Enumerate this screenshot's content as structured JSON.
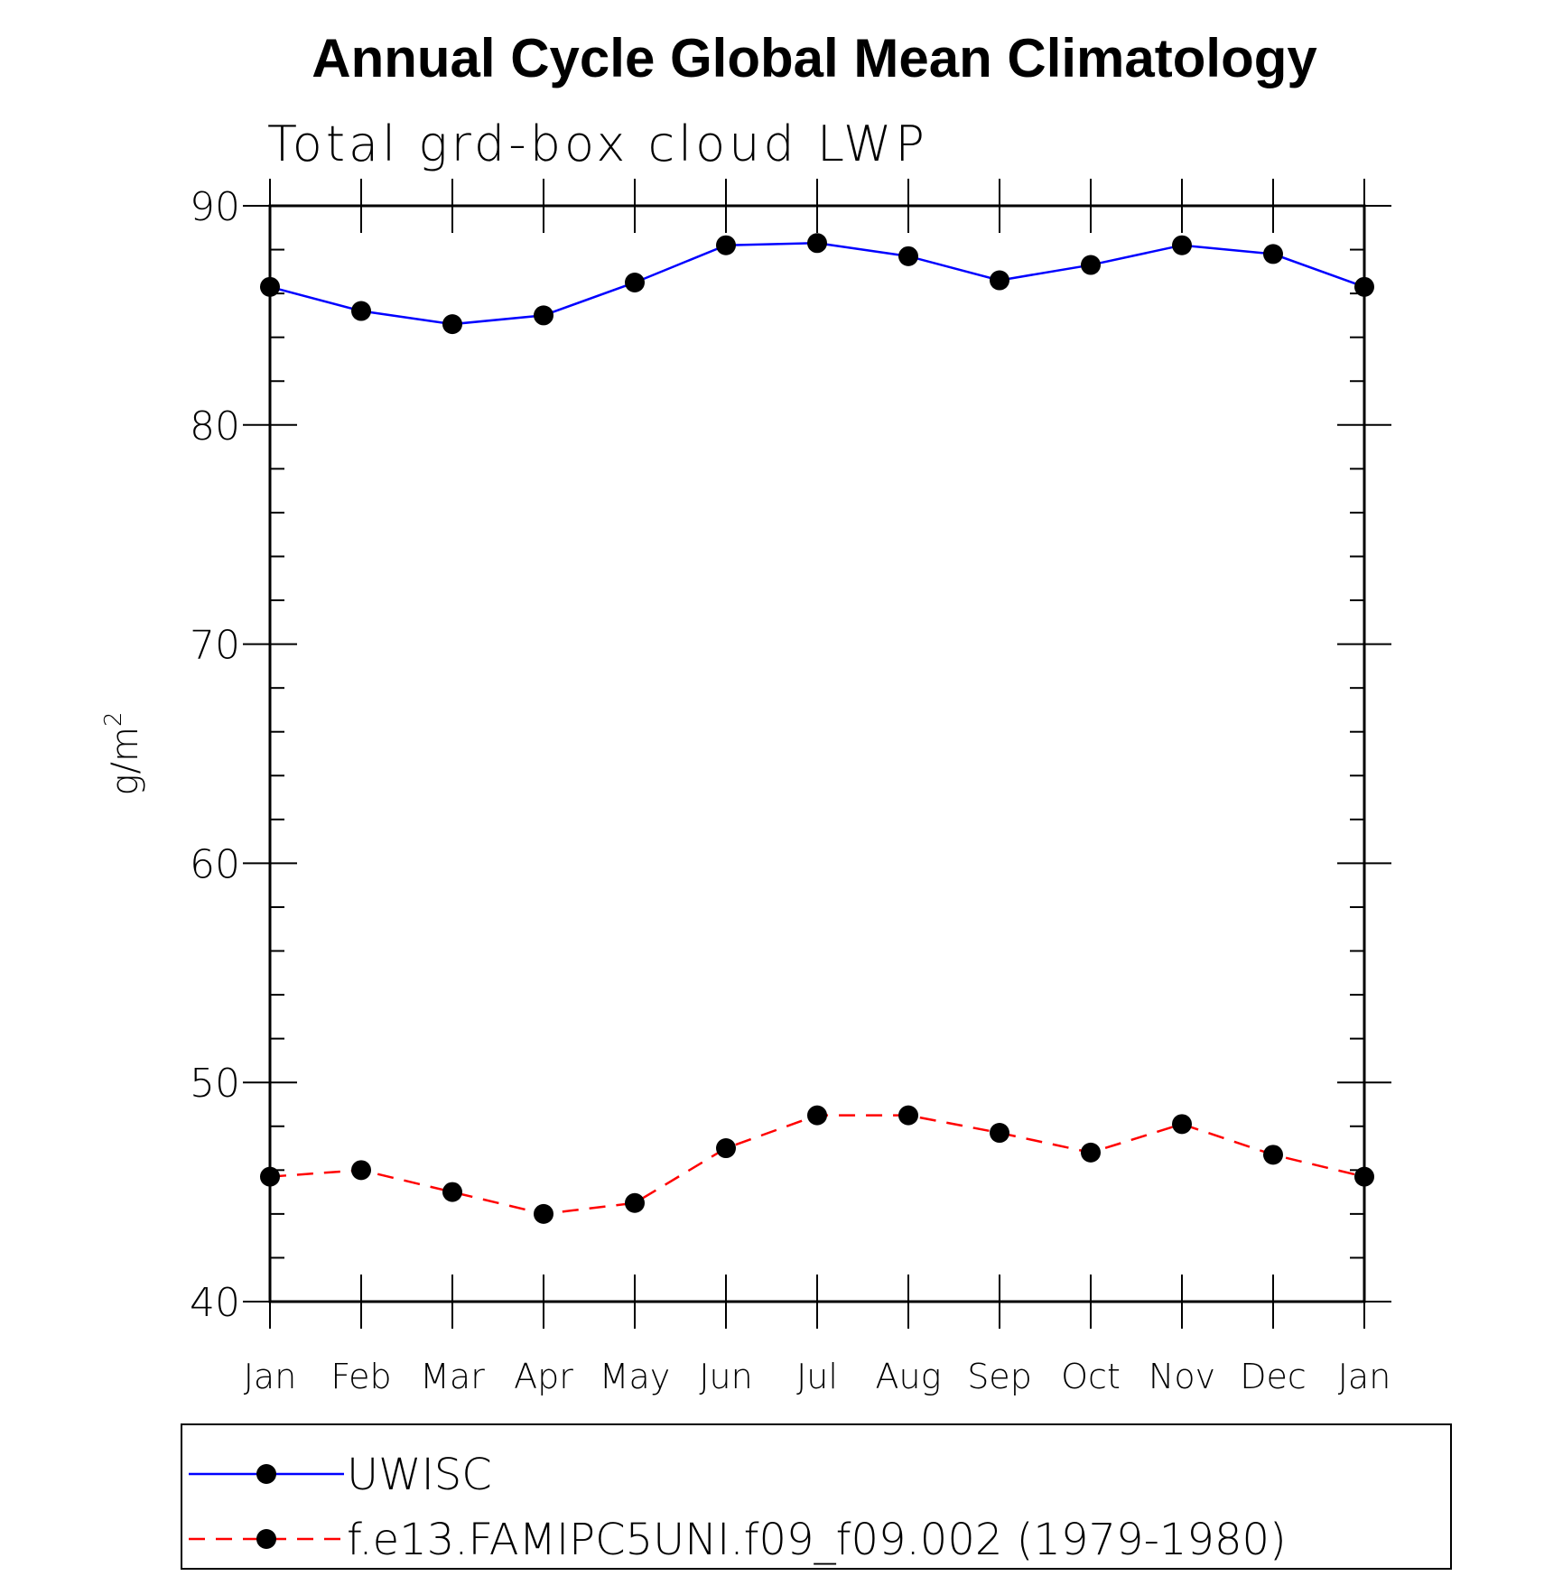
{
  "chart_data": {
    "type": "line",
    "title": "Annual Cycle Global Mean Climatology",
    "subtitle": "Total grd-box cloud LWP",
    "ylabel_base": "g/m",
    "ylabel_sup": "2",
    "xlabel": "",
    "categories": [
      "Jan",
      "Feb",
      "Mar",
      "Apr",
      "May",
      "Jun",
      "Jul",
      "Aug",
      "Sep",
      "Oct",
      "Nov",
      "Dec",
      "Jan"
    ],
    "ylim": [
      40,
      90
    ],
    "yticks": [
      "40",
      "50",
      "60",
      "70",
      "80",
      "90"
    ],
    "series": [
      {
        "name": "UWISC",
        "color": "#0000ff",
        "dash": "solid",
        "values": [
          86.3,
          85.2,
          84.6,
          85.0,
          86.5,
          88.2,
          88.3,
          87.7,
          86.6,
          87.3,
          88.2,
          87.8,
          86.3
        ]
      },
      {
        "name": "f.e13.FAMIPC5UNI.f09_f09.002 (1979-1980)",
        "color": "#ff0000",
        "dash": "dashed",
        "values": [
          45.7,
          46.0,
          45.0,
          44.0,
          44.5,
          47.0,
          48.5,
          48.5,
          47.7,
          46.8,
          48.1,
          46.7,
          45.7
        ]
      }
    ],
    "legend_position": "bottom"
  }
}
